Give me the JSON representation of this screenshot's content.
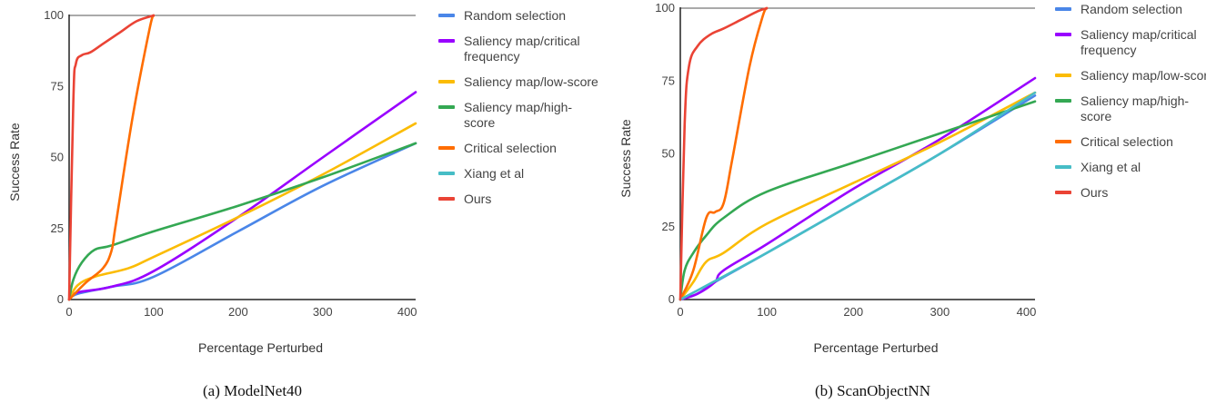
{
  "captions": [
    "(a) ModelNet40",
    "(b) ScanObjectNN"
  ],
  "chart_data": [
    {
      "type": "line",
      "xlabel": "Percentage Perturbed",
      "ylabel": "Success Rate",
      "xlim": [
        0,
        410
      ],
      "ylim": [
        0,
        100
      ],
      "x_ticks": [
        0,
        100,
        200,
        300,
        400
      ],
      "y_ticks": [
        0,
        25,
        50,
        75,
        100
      ],
      "legend_position": "right",
      "series": [
        {
          "name": "Random selection",
          "color": "#4a86e8",
          "points": [
            [
              0,
              0
            ],
            [
              10,
              2
            ],
            [
              50,
              4.5
            ],
            [
              100,
              8
            ],
            [
              200,
              24
            ],
            [
              300,
              40
            ],
            [
              410,
              55
            ]
          ]
        },
        {
          "name": "Saliency map/critical frequency",
          "color": "#9900ff",
          "points": [
            [
              0,
              0
            ],
            [
              10,
              2.5
            ],
            [
              50,
              4.5
            ],
            [
              100,
              10
            ],
            [
              200,
              29
            ],
            [
              300,
              50
            ],
            [
              410,
              73
            ]
          ]
        },
        {
          "name": "Saliency map/low-score",
          "color": "#fbbc04",
          "points": [
            [
              0,
              0
            ],
            [
              10,
              5
            ],
            [
              30,
              8
            ],
            [
              70,
              11
            ],
            [
              100,
              15
            ],
            [
              200,
              29
            ],
            [
              300,
              44
            ],
            [
              410,
              62
            ]
          ]
        },
        {
          "name": "Saliency map/high-score",
          "color": "#34a853",
          "points": [
            [
              0,
              0
            ],
            [
              5,
              7
            ],
            [
              15,
              13
            ],
            [
              30,
              17.5
            ],
            [
              50,
              19
            ],
            [
              100,
              24
            ],
            [
              200,
              33
            ],
            [
              300,
              43
            ],
            [
              410,
              55
            ]
          ]
        },
        {
          "name": "Critical selection",
          "color": "#ff6d01",
          "points": [
            [
              0,
              0
            ],
            [
              20,
              6
            ],
            [
              40,
              11
            ],
            [
              50,
              17
            ],
            [
              55,
              26
            ],
            [
              75,
              64
            ],
            [
              95,
              95
            ],
            [
              100,
              100
            ]
          ]
        },
        {
          "name": "Xiang et al",
          "color": "#46bdc6",
          "points": []
        },
        {
          "name": "Ours",
          "color": "#ea4335",
          "points": [
            [
              0,
              0
            ],
            [
              5,
              70
            ],
            [
              8,
              83
            ],
            [
              15,
              86
            ],
            [
              25,
              87
            ],
            [
              40,
              90
            ],
            [
              60,
              94
            ],
            [
              80,
              98
            ],
            [
              100,
              100
            ]
          ]
        }
      ]
    },
    {
      "type": "line",
      "xlabel": "Percentage Perturbed",
      "ylabel": "Success Rate",
      "xlim": [
        0,
        410
      ],
      "ylim": [
        0,
        100
      ],
      "x_ticks": [
        0,
        100,
        200,
        300,
        400
      ],
      "y_ticks": [
        0,
        25,
        50,
        75,
        100
      ],
      "legend_position": "right",
      "series": [
        {
          "name": "Random selection",
          "color": "#4a86e8",
          "points": [
            [
              0,
              0
            ],
            [
              20,
              2
            ],
            [
              40,
              6
            ],
            [
              100,
              16
            ],
            [
              200,
              33
            ],
            [
              300,
              50
            ],
            [
              410,
              70
            ]
          ]
        },
        {
          "name": "Saliency map/critical frequency",
          "color": "#9900ff",
          "points": [
            [
              0,
              0
            ],
            [
              20,
              2
            ],
            [
              40,
              6
            ],
            [
              50,
              10
            ],
            [
              100,
              19
            ],
            [
              200,
              38
            ],
            [
              300,
              55
            ],
            [
              410,
              76
            ]
          ]
        },
        {
          "name": "Saliency map/low-score",
          "color": "#fbbc04",
          "points": [
            [
              0,
              0
            ],
            [
              15,
              6
            ],
            [
              30,
              13
            ],
            [
              50,
              16
            ],
            [
              100,
              26
            ],
            [
              200,
              40
            ],
            [
              300,
              54
            ],
            [
              410,
              71
            ]
          ]
        },
        {
          "name": "Saliency map/high-score",
          "color": "#34a853",
          "points": [
            [
              0,
              0
            ],
            [
              5,
              10
            ],
            [
              15,
              16
            ],
            [
              30,
              22
            ],
            [
              50,
              28
            ],
            [
              100,
              37
            ],
            [
              200,
              47
            ],
            [
              300,
              57
            ],
            [
              410,
              68
            ]
          ]
        },
        {
          "name": "Critical selection",
          "color": "#ff6d01",
          "points": [
            [
              0,
              0
            ],
            [
              15,
              10
            ],
            [
              30,
              28
            ],
            [
              40,
              30
            ],
            [
              50,
              33
            ],
            [
              60,
              48
            ],
            [
              80,
              80
            ],
            [
              95,
              97
            ],
            [
              100,
              100
            ]
          ]
        },
        {
          "name": "Xiang et al",
          "color": "#46bdc6",
          "points": [
            [
              0,
              0
            ],
            [
              100,
              16
            ],
            [
              200,
              33
            ],
            [
              300,
              50
            ],
            [
              410,
              71
            ]
          ]
        },
        {
          "name": "Ours",
          "color": "#ea4335",
          "points": [
            [
              0,
              0
            ],
            [
              5,
              60
            ],
            [
              10,
              80
            ],
            [
              20,
              87
            ],
            [
              35,
              91
            ],
            [
              50,
              93
            ],
            [
              70,
              96
            ],
            [
              90,
              99
            ],
            [
              100,
              100
            ]
          ]
        }
      ]
    }
  ]
}
